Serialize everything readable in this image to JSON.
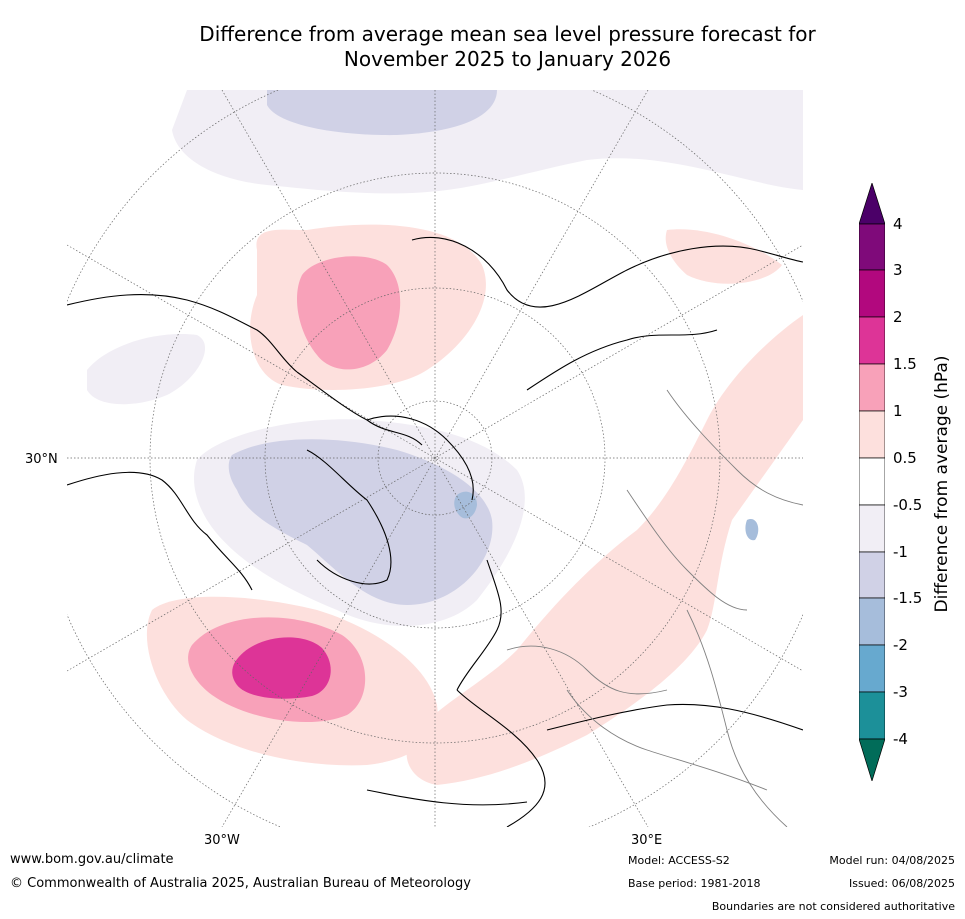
{
  "title": {
    "line1": "Difference from average mean sea level pressure forecast for",
    "line2": "November 2025 to January 2026"
  },
  "map": {
    "axis_labels": {
      "lat_30n": "30°N",
      "lon_30w": "30°W",
      "lon_30e": "30°E"
    },
    "anomaly_regions": [
      {
        "region": "north-atlantic-high",
        "peak_hpa": 2
      },
      {
        "region": "bering-strait-high",
        "peak_hpa": 1.5
      },
      {
        "region": "arctic-greenland-low",
        "peak_hpa": -1.5
      },
      {
        "region": "eurasia-positive-band",
        "peak_hpa": 1
      }
    ]
  },
  "colorbar": {
    "title": "Difference from average (hPa)",
    "tick_labels": [
      "4",
      "3",
      "2",
      "1.5",
      "1",
      "0.5",
      "-0.5",
      "-1",
      "-1.5",
      "-2",
      "-3",
      "-4"
    ],
    "bins_top_to_bottom": [
      {
        "label": ">4",
        "color": "#4b0068"
      },
      {
        "label": "3 to 4",
        "color": "#7f0a7a"
      },
      {
        "label": "2 to 3",
        "color": "#b2087e"
      },
      {
        "label": "1.5 to 2",
        "color": "#dd3497"
      },
      {
        "label": "1 to 1.5",
        "color": "#f8a1b9"
      },
      {
        "label": "0.5 to 1",
        "color": "#fde0dd"
      },
      {
        "label": "-0.5 to 0.5",
        "color": "#ffffff"
      },
      {
        "label": "-1 to -0.5",
        "color": "#f1eef5"
      },
      {
        "label": "-1.5 to -1",
        "color": "#d0d1e6"
      },
      {
        "label": "-2 to -1.5",
        "color": "#a6bddb"
      },
      {
        "label": "-3 to -2",
        "color": "#67a9cf"
      },
      {
        "label": "-4 to -3",
        "color": "#1c9099"
      },
      {
        "label": "<-4",
        "color": "#016c59"
      }
    ]
  },
  "footer": {
    "website": "www.bom.gov.au/climate",
    "copyright": "© Commonwealth of Australia 2025, Australian Bureau of Meteorology",
    "model": "Model: ACCESS-S2",
    "base_period": "Base period: 1981-2018",
    "model_run": "Model run: 04/08/2025",
    "issued": "Issued: 06/08/2025",
    "disclaimer": "Boundaries are not considered authoritative"
  }
}
